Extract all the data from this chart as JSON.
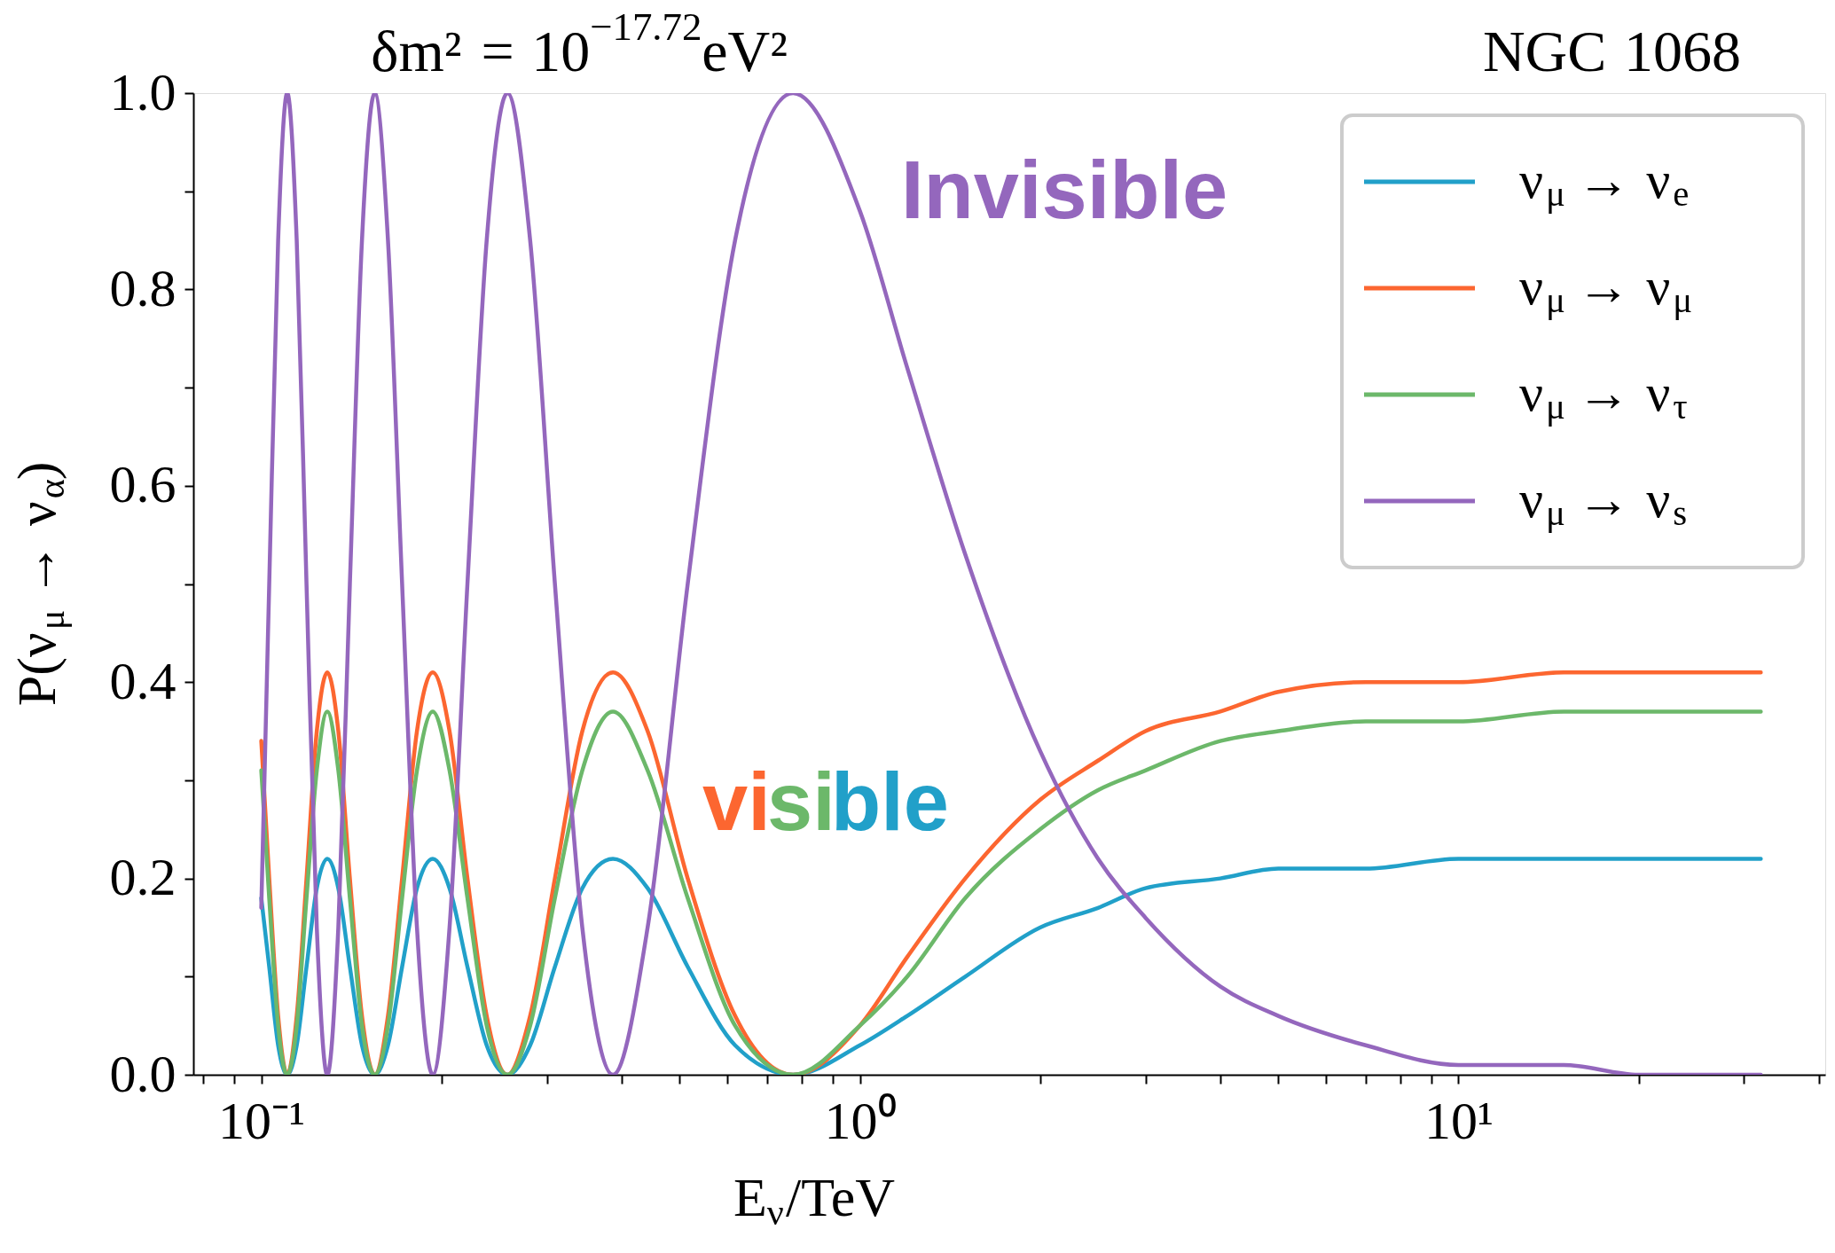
{
  "chart_data": {
    "type": "line",
    "title": "δm² = 10$^{−17.72}$eV²",
    "xlabel": "E$_{ν}$/TeV",
    "ylabel": "P(ν$_{μ}$ → ν$_{α}$)",
    "log": "x",
    "grid": false,
    "legend": "top right",
    "marker": "none",
    "line_style": "solid",
    "xlim": [
      0.077,
      41
    ],
    "ylim": [
      0,
      1
    ],
    "xticks": [
      {
        "value": 0.08,
        "label": null
      },
      {
        "value": 0.09,
        "label": null
      },
      {
        "value": 0.1,
        "label": "10⁻¹"
      },
      {
        "value": 0.2,
        "label": null
      },
      {
        "value": 0.3,
        "label": null
      },
      {
        "value": 0.4,
        "label": null
      },
      {
        "value": 0.5,
        "label": null
      },
      {
        "value": 0.6,
        "label": null
      },
      {
        "value": 0.7,
        "label": null
      },
      {
        "value": 0.8,
        "label": null
      },
      {
        "value": 0.9,
        "label": null
      },
      {
        "value": 1,
        "label": "10⁰"
      },
      {
        "value": 2,
        "label": null
      },
      {
        "value": 3,
        "label": null
      },
      {
        "value": 4,
        "label": null
      },
      {
        "value": 5,
        "label": null
      },
      {
        "value": 6,
        "label": null
      },
      {
        "value": 7,
        "label": null
      },
      {
        "value": 8,
        "label": null
      },
      {
        "value": 9,
        "label": null
      },
      {
        "value": 10,
        "label": "10¹"
      },
      {
        "value": 20,
        "label": null
      },
      {
        "value": 30,
        "label": null
      },
      {
        "value": 40,
        "label": null
      }
    ],
    "yticks": [
      {
        "value": 0,
        "label": "0.0"
      },
      {
        "value": 0.1,
        "label": null
      },
      {
        "value": 0.2,
        "label": "0.2"
      },
      {
        "value": 0.3,
        "label": null
      },
      {
        "value": 0.4,
        "label": "0.4"
      },
      {
        "value": 0.5,
        "label": null
      },
      {
        "value": 0.6,
        "label": "0.6"
      },
      {
        "value": 0.7,
        "label": null
      },
      {
        "value": 0.8,
        "label": "0.8"
      },
      {
        "value": 0.9,
        "label": null
      },
      {
        "value": 1,
        "label": "1.0"
      }
    ],
    "x": [
      0.1,
      0.1031,
      0.1067,
      0.1105,
      0.1146,
      0.119,
      0.1238,
      0.1289,
      0.1345,
      0.1406,
      0.1473,
      0.1547,
      0.1628,
      0.1719,
      0.182,
      0.1934,
      0.2063,
      0.221,
      0.238,
      0.2578,
      0.2813,
      0.3094,
      0.3438,
      0.3868,
      0.442,
      0.5157,
      0.6188,
      0.7735,
      1,
      1.2,
      1.5,
      2,
      2.5,
      3,
      4,
      5,
      7,
      10,
      15,
      20,
      30,
      32
    ],
    "series": [
      {
        "name": "ν$_{μ}$ → ν$_{e}$",
        "color": "#21a0c9",
        "values": [
          0.18,
          0.11,
          0.03,
          0,
          0.03,
          0.11,
          0.19,
          0.22,
          0.19,
          0.11,
          0.03,
          0,
          0.03,
          0.11,
          0.19,
          0.22,
          0.19,
          0.11,
          0.03,
          0,
          0.03,
          0.11,
          0.19,
          0.22,
          0.19,
          0.11,
          0.03,
          0,
          0.03,
          0.06,
          0.1,
          0.15,
          0.17,
          0.19,
          0.2,
          0.21,
          0.21,
          0.22,
          0.22,
          0.22,
          0.22,
          0.22
        ]
      },
      {
        "name": "ν$_{μ}$ → ν$_{μ}$",
        "color": "#fc6630",
        "values": [
          0.34,
          0.2,
          0.06,
          0,
          0.06,
          0.2,
          0.35,
          0.41,
          0.35,
          0.2,
          0.06,
          0,
          0.06,
          0.2,
          0.35,
          0.41,
          0.35,
          0.2,
          0.06,
          0,
          0.06,
          0.2,
          0.35,
          0.41,
          0.35,
          0.2,
          0.06,
          0,
          0.05,
          0.12,
          0.2,
          0.28,
          0.32,
          0.35,
          0.37,
          0.39,
          0.4,
          0.4,
          0.41,
          0.41,
          0.41,
          0.41
        ]
      },
      {
        "name": "ν$_{μ}$ → ν$_{τ}$",
        "color": "#6cb86a",
        "values": [
          0.31,
          0.18,
          0.05,
          0,
          0.05,
          0.18,
          0.31,
          0.37,
          0.31,
          0.18,
          0.05,
          0,
          0.05,
          0.18,
          0.31,
          0.37,
          0.31,
          0.18,
          0.05,
          0,
          0.05,
          0.18,
          0.31,
          0.37,
          0.31,
          0.18,
          0.05,
          0,
          0.05,
          0.1,
          0.18,
          0.25,
          0.29,
          0.31,
          0.34,
          0.35,
          0.36,
          0.36,
          0.37,
          0.37,
          0.37,
          0.37
        ]
      },
      {
        "name": "ν$_{μ}$ → ν$_{s}$",
        "color": "#9467bd",
        "values": [
          0.17,
          0.5,
          0.85,
          1,
          0.85,
          0.5,
          0.15,
          0,
          0.15,
          0.5,
          0.85,
          1,
          0.85,
          0.5,
          0.15,
          0,
          0.15,
          0.5,
          0.85,
          1,
          0.85,
          0.5,
          0.15,
          0,
          0.15,
          0.5,
          0.85,
          1,
          0.88,
          0.72,
          0.53,
          0.33,
          0.22,
          0.16,
          0.09,
          0.06,
          0.03,
          0.01,
          0.01,
          0,
          0,
          0
        ]
      }
    ],
    "annotations": [
      "NGC 1068",
      "Invisible",
      "visible"
    ]
  }
}
